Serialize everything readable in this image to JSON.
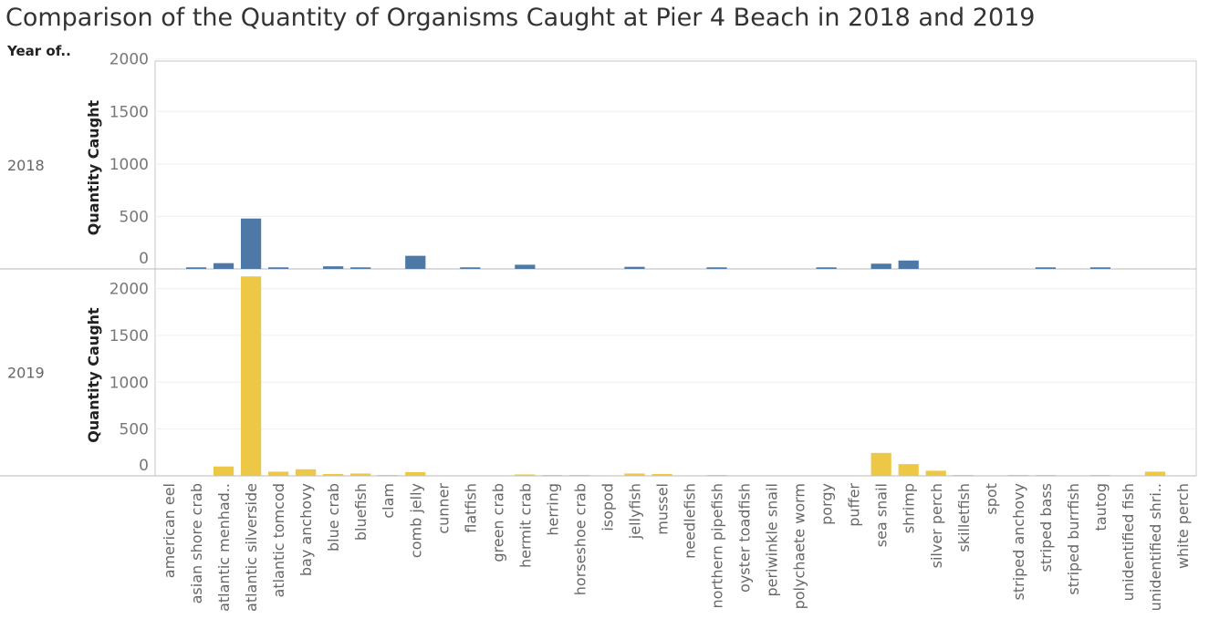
{
  "title": "Comparison of the Quantity of Organisms  Caught at Pier 4 Beach in 2018 and 2019",
  "header_label": "Year of..",
  "chart_data": {
    "type": "bar",
    "title": "Comparison of the Quantity of Organisms  Caught at Pier 4 Beach in 2018 and 2019",
    "xlabel": "",
    "ylabel": "Quantity Caught",
    "ylim": [
      0,
      2100
    ],
    "yticks": [
      0,
      500,
      1000,
      1500,
      2000
    ],
    "grid": true,
    "categories": [
      "american eel",
      "asian shore crab",
      "atlantic menhad..",
      "atlantic silverside",
      "atlantic tomcod",
      "bay anchovy",
      "blue crab",
      "bluefish",
      "clam",
      "comb jelly",
      "cunner",
      "flatfish",
      "green crab",
      "hermit crab",
      "herring",
      "horseshoe crab",
      "isopod",
      "jellyfish",
      "mussel",
      "needlefish",
      "northern pipefish",
      "oyster toadfish",
      "periwinkle snail",
      "polychaete worm",
      "porgy",
      "puffer",
      "sea snail",
      "shrimp",
      "silver perch",
      "skilletfish",
      "spot",
      "striped anchovy",
      "striped bass",
      "striped burrfish",
      "tautog",
      "unidentified fish",
      "unidentified shri..",
      "white perch"
    ],
    "series": [
      {
        "name": "2018",
        "color": "#4e79a7",
        "values": [
          0,
          15,
          55,
          480,
          15,
          0,
          25,
          15,
          0,
          125,
          0,
          15,
          0,
          40,
          0,
          0,
          0,
          20,
          0,
          0,
          15,
          0,
          0,
          0,
          15,
          0,
          50,
          80,
          0,
          0,
          0,
          0,
          15,
          0,
          15,
          0,
          0,
          0
        ]
      },
      {
        "name": "2019",
        "color": "#ecc846",
        "values": [
          0,
          0,
          100,
          2130,
          45,
          70,
          20,
          25,
          10,
          40,
          0,
          0,
          0,
          15,
          10,
          10,
          0,
          25,
          20,
          0,
          10,
          0,
          0,
          0,
          0,
          0,
          245,
          125,
          55,
          10,
          0,
          10,
          10,
          0,
          10,
          0,
          45,
          0
        ]
      }
    ]
  }
}
